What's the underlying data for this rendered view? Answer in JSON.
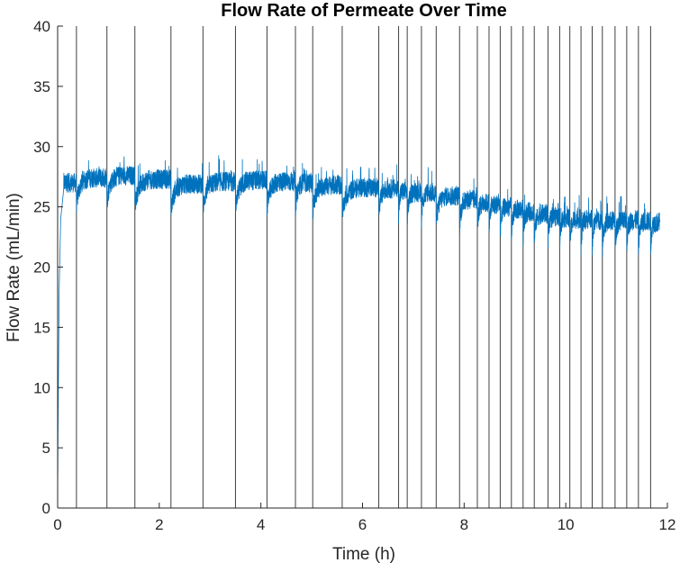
{
  "chart_data": {
    "type": "line",
    "title": "Flow Rate of Permeate Over Time",
    "xlabel": "Time (h)",
    "ylabel": "Flow Rate (mL/min)",
    "xlim": [
      0,
      12
    ],
    "ylim": [
      0,
      40
    ],
    "xticks": [
      0,
      2,
      4,
      6,
      8,
      10,
      12
    ],
    "yticks": [
      0,
      5,
      10,
      15,
      20,
      25,
      30,
      35,
      40
    ],
    "grid": false,
    "legend": "none",
    "series_color": "#0072BD",
    "event_line_color": "#404040",
    "event_lines_x": [
      0.37,
      0.97,
      1.52,
      2.23,
      2.86,
      3.5,
      4.12,
      4.68,
      5.02,
      5.6,
      6.32,
      6.71,
      6.88,
      7.16,
      7.45,
      7.91,
      8.26,
      8.49,
      8.71,
      8.93,
      9.16,
      9.38,
      9.65,
      9.88,
      10.08,
      10.3,
      10.52,
      10.72,
      10.97,
      11.2,
      11.43,
      11.67
    ],
    "series": [
      {
        "start_ramp": [
          [
            0.0,
            0.5
          ],
          [
            0.01,
            8.0
          ],
          [
            0.03,
            18.0
          ],
          [
            0.06,
            24.0
          ],
          [
            0.12,
            26.5
          ]
        ],
        "segment_plateaus": [
          27.0,
          27.4,
          27.6,
          27.3,
          26.9,
          27.1,
          27.2,
          27.1,
          27.0,
          26.8,
          26.6,
          26.5,
          26.3,
          26.2,
          26.2,
          25.9,
          25.6,
          25.3,
          25.2,
          25.0,
          24.8,
          24.6,
          24.4,
          24.2,
          24.1,
          24.0,
          24.0,
          23.9,
          23.8,
          23.8,
          23.9,
          23.8,
          23.7
        ],
        "segment_dip_depth": 2.2,
        "noise_amplitude": 0.8
      }
    ]
  }
}
